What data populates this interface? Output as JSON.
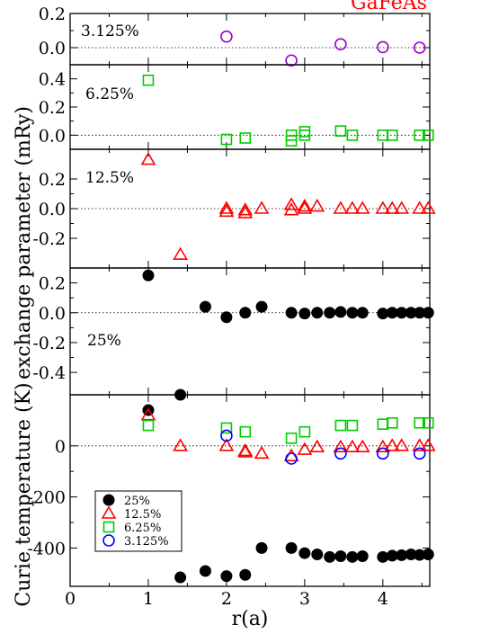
{
  "corner_title": {
    "text": "GaFeAs",
    "color": "#ff0000"
  },
  "colors": {
    "c25": "#000000",
    "c125": "#ff0000",
    "c625": "#00cc00",
    "c3125": "#0000ff",
    "c3125_panel": "#9900cc"
  },
  "axes": {
    "xlabel": "r(a)",
    "ylabel_top": "exchange parameter (mRy)",
    "ylabel_bottom": "Curie temperature (K)",
    "x_ticks": [
      "0",
      "1",
      "2",
      "3",
      "4"
    ]
  },
  "legend": {
    "placement": "lower-left",
    "items": [
      {
        "label": "25%",
        "marker": "filled-circle",
        "color": "#000000"
      },
      {
        "label": "12.5%",
        "marker": "triangle",
        "color": "#ff0000"
      },
      {
        "label": "6.25%",
        "marker": "square",
        "color": "#00cc00"
      },
      {
        "label": "3.125%",
        "marker": "circle",
        "color": "#0000ff"
      }
    ]
  },
  "chart_data": [
    {
      "type": "scatter",
      "panel_label": "3.125%",
      "ylim": [
        -0.1,
        0.2
      ],
      "y_ticks": [
        0.0,
        0.2
      ],
      "y_tick_labels": [
        "0.0",
        "0.2"
      ],
      "series": [
        {
          "marker": "circle",
          "color": "#9900cc",
          "x": [
            2.0,
            2.83,
            3.46,
            4.0,
            4.47
          ],
          "y": [
            0.065,
            -0.075,
            0.02,
            0.003,
            0.0
          ]
        }
      ]
    },
    {
      "type": "scatter",
      "panel_label": "6.25%",
      "ylim": [
        -0.1,
        0.5
      ],
      "y_ticks": [
        0.0,
        0.2,
        0.4
      ],
      "y_tick_labels": [
        "0.0",
        "0.2",
        "0.4"
      ],
      "series": [
        {
          "marker": "square",
          "color": "#00cc00",
          "x": [
            1.0,
            2.0,
            2.24,
            2.83,
            2.83,
            3.0,
            3.0,
            3.46,
            3.61,
            4.0,
            4.12,
            4.47,
            4.58
          ],
          "y": [
            0.39,
            -0.03,
            -0.02,
            -0.04,
            0.0,
            0.0,
            0.025,
            0.03,
            0.0,
            0.0,
            0.0,
            0.0,
            0.0
          ]
        }
      ]
    },
    {
      "type": "scatter",
      "panel_label": "12.5%",
      "ylim": [
        -0.4,
        0.4
      ],
      "y_ticks": [
        -0.2,
        0.0,
        0.2
      ],
      "y_tick_labels": [
        "-0.2",
        "0.0",
        "0.2"
      ],
      "series": [
        {
          "marker": "triangle",
          "color": "#ff0000",
          "x": [
            1.0,
            1.41,
            2.0,
            2.0,
            2.24,
            2.24,
            2.45,
            2.83,
            2.83,
            3.0,
            3.0,
            3.16,
            3.46,
            3.61,
            3.74,
            4.0,
            4.12,
            4.24,
            4.47,
            4.58
          ],
          "y": [
            0.33,
            -0.31,
            0.0,
            -0.02,
            -0.01,
            -0.03,
            0.0,
            -0.01,
            0.025,
            0.0,
            0.015,
            0.015,
            0.0,
            0.0,
            0.0,
            0.0,
            0.0,
            0.0,
            0.0,
            0.0
          ]
        }
      ]
    },
    {
      "type": "scatter",
      "panel_label": "25%",
      "ylim": [
        -0.55,
        0.3
      ],
      "y_ticks": [
        -0.4,
        -0.2,
        0.0,
        0.2
      ],
      "y_tick_labels": [
        "-0.4",
        "-0.2",
        "0.0",
        "0.2"
      ],
      "series": [
        {
          "marker": "filled-circle",
          "color": "#000000",
          "x": [
            1.0,
            1.41,
            1.73,
            2.0,
            2.24,
            2.45,
            2.83,
            3.0,
            3.16,
            3.32,
            3.46,
            3.61,
            3.74,
            4.0,
            4.12,
            4.24,
            4.36,
            4.47,
            4.58
          ],
          "y": [
            0.25,
            -0.55,
            0.04,
            -0.03,
            0.0,
            0.04,
            0.0,
            -0.005,
            0.0,
            0.0,
            0.005,
            0.0,
            0.0,
            -0.005,
            0.0,
            0.0,
            0.0,
            0.0,
            0.0
          ]
        }
      ]
    },
    {
      "type": "scatter",
      "ylim": [
        -550,
        200
      ],
      "y_ticks": [
        -400,
        -200,
        0
      ],
      "y_tick_labels": [
        "-400",
        "-200",
        "0"
      ],
      "xlim": [
        0,
        4.6
      ],
      "series": [
        {
          "name": "25%",
          "marker": "filled-circle",
          "color": "#000000",
          "x": [
            1.0,
            1.41,
            1.73,
            2.0,
            2.24,
            2.45,
            2.83,
            3.0,
            3.16,
            3.32,
            3.46,
            3.61,
            3.74,
            4.0,
            4.12,
            4.24,
            4.36,
            4.47,
            4.58
          ],
          "y": [
            140,
            -515,
            -490,
            -510,
            -505,
            -400,
            -400,
            -420,
            -425,
            -435,
            -432,
            -435,
            -432,
            -435,
            -430,
            -428,
            -425,
            -427,
            -425
          ]
        },
        {
          "name": "12.5%",
          "marker": "triangle",
          "color": "#ff0000",
          "x": [
            1.0,
            1.41,
            2.0,
            2.24,
            2.24,
            2.45,
            2.83,
            3.0,
            3.16,
            3.46,
            3.61,
            3.74,
            4.0,
            4.12,
            4.24,
            4.47,
            4.58
          ],
          "y": [
            120,
            0,
            0,
            -20,
            -25,
            -30,
            -40,
            -15,
            -5,
            -5,
            -5,
            -5,
            -5,
            0,
            0,
            0,
            0
          ]
        },
        {
          "name": "6.25%",
          "marker": "square",
          "color": "#00cc00",
          "x": [
            1.0,
            2.0,
            2.24,
            2.83,
            3.0,
            3.46,
            3.61,
            4.0,
            4.12,
            4.47,
            4.58
          ],
          "y": [
            80,
            70,
            55,
            30,
            55,
            80,
            80,
            85,
            90,
            90,
            90
          ]
        },
        {
          "name": "3.125%",
          "marker": "circle",
          "color": "#0000ff",
          "x": [
            2.0,
            2.83,
            3.46,
            4.0,
            4.47
          ],
          "y": [
            40,
            -50,
            -30,
            -30,
            -30
          ]
        }
      ]
    }
  ]
}
